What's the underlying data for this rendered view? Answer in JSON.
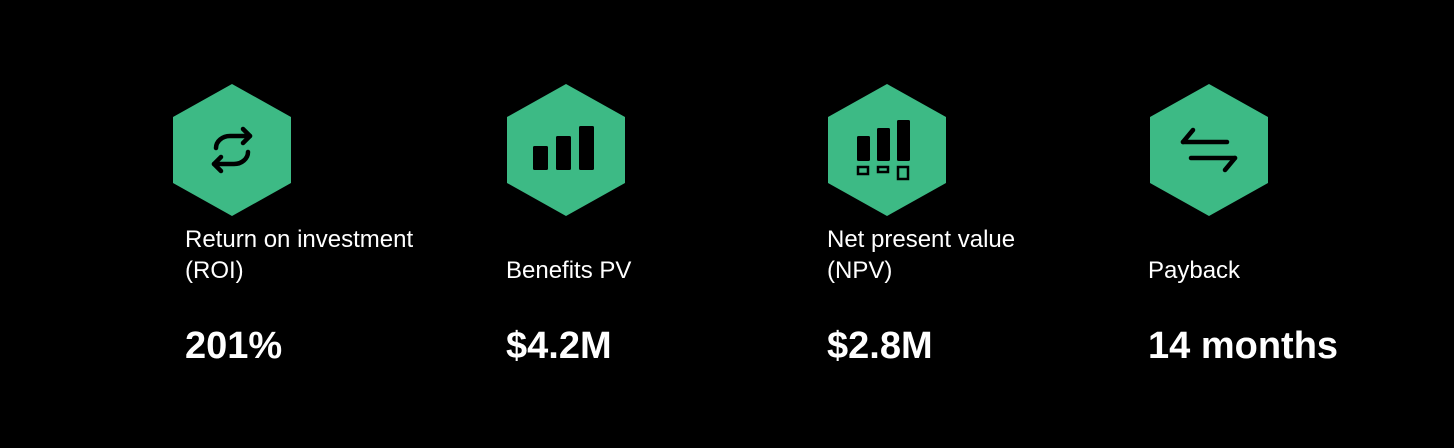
{
  "stats": [
    {
      "label_lines": [
        "Return on investment",
        "(ROI)"
      ],
      "value": "201%"
    },
    {
      "label_lines": [
        "Benefits PV"
      ],
      "value": "$4.2M"
    },
    {
      "label_lines": [
        "Net present value",
        "(NPV)"
      ],
      "value": "$2.8M"
    },
    {
      "label_lines": [
        "Payback"
      ],
      "value": "14 months"
    }
  ]
}
